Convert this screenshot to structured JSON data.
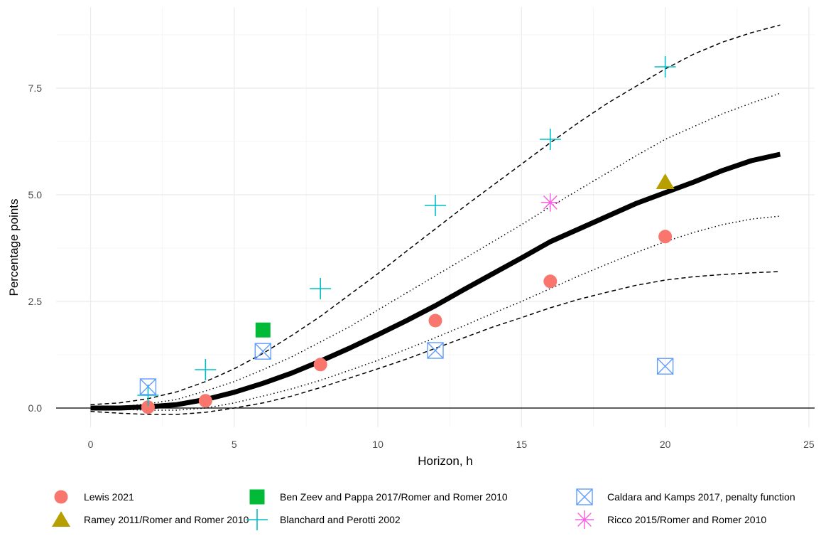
{
  "chart_data": {
    "type": "line",
    "xlabel": "Horizon, h",
    "ylabel": "Percentage points",
    "xlim": [
      -1.2,
      25.2
    ],
    "ylim": [
      -0.45,
      9.4
    ],
    "x_ticks": [
      0,
      5,
      10,
      15,
      20,
      25
    ],
    "x_tick_labels": [
      "0",
      "5",
      "10",
      "15",
      "20",
      "25"
    ],
    "y_ticks": [
      0,
      2.5,
      5,
      7.5
    ],
    "y_tick_labels": [
      "0.0",
      "2.5",
      "5.0",
      "7.5"
    ],
    "grid": true,
    "legend_position": "bottom",
    "lines": {
      "estimate": {
        "x": [
          0,
          1,
          2,
          3,
          4,
          5,
          6,
          7,
          8,
          9,
          10,
          11,
          12,
          13,
          14,
          15,
          16,
          17,
          18,
          19,
          20,
          21,
          22,
          23,
          24
        ],
        "y": [
          0.0,
          0.0,
          0.03,
          0.08,
          0.2,
          0.37,
          0.58,
          0.82,
          1.1,
          1.4,
          1.72,
          2.05,
          2.4,
          2.78,
          3.15,
          3.52,
          3.9,
          4.2,
          4.5,
          4.8,
          5.05,
          5.3,
          5.57,
          5.8,
          5.95
        ]
      },
      "band_inner_upper": {
        "x": [
          0,
          1,
          2,
          3,
          4,
          5,
          6,
          7,
          8,
          9,
          10,
          11,
          12,
          13,
          14,
          15,
          16,
          17,
          18,
          19,
          20,
          21,
          22,
          23,
          24
        ],
        "y": [
          0.0,
          0.03,
          0.1,
          0.2,
          0.4,
          0.62,
          0.9,
          1.2,
          1.55,
          1.9,
          2.3,
          2.7,
          3.1,
          3.5,
          3.9,
          4.3,
          4.72,
          5.12,
          5.52,
          5.92,
          6.3,
          6.6,
          6.9,
          7.15,
          7.38
        ]
      },
      "band_inner_lower": {
        "x": [
          0,
          1,
          2,
          3,
          4,
          5,
          6,
          7,
          8,
          9,
          10,
          11,
          12,
          13,
          14,
          15,
          16,
          17,
          18,
          19,
          20,
          21,
          22,
          23,
          24
        ],
        "y": [
          0.0,
          -0.03,
          -0.05,
          -0.05,
          0.0,
          0.12,
          0.28,
          0.45,
          0.65,
          0.88,
          1.12,
          1.38,
          1.65,
          1.93,
          2.22,
          2.5,
          2.8,
          3.1,
          3.38,
          3.65,
          3.9,
          4.12,
          4.3,
          4.43,
          4.5
        ]
      },
      "band_outer_upper": {
        "x": [
          0,
          1,
          2,
          3,
          4,
          5,
          6,
          7,
          8,
          9,
          10,
          11,
          12,
          13,
          14,
          15,
          16,
          17,
          18,
          19,
          20,
          21,
          22,
          23,
          24
        ],
        "y": [
          0.08,
          0.12,
          0.22,
          0.38,
          0.62,
          0.92,
          1.28,
          1.7,
          2.15,
          2.65,
          3.15,
          3.68,
          4.2,
          4.72,
          5.22,
          5.72,
          6.22,
          6.7,
          7.15,
          7.55,
          7.95,
          8.3,
          8.58,
          8.8,
          8.98
        ]
      },
      "band_outer_lower": {
        "x": [
          0,
          1,
          2,
          3,
          4,
          5,
          6,
          7,
          8,
          9,
          10,
          11,
          12,
          13,
          14,
          15,
          16,
          17,
          18,
          19,
          20,
          21,
          22,
          23,
          24
        ],
        "y": [
          -0.08,
          -0.12,
          -0.15,
          -0.15,
          -0.1,
          0.0,
          0.12,
          0.28,
          0.48,
          0.7,
          0.92,
          1.15,
          1.4,
          1.65,
          1.9,
          2.12,
          2.35,
          2.55,
          2.72,
          2.88,
          3.0,
          3.08,
          3.13,
          3.17,
          3.2
        ]
      }
    },
    "series": [
      {
        "name": "Lewis 2021",
        "marker": "circle",
        "color": "#F8766D",
        "points": [
          [
            2,
            0.02
          ],
          [
            4,
            0.17
          ],
          [
            8,
            1.02
          ],
          [
            12,
            2.05
          ],
          [
            16,
            2.97
          ],
          [
            20,
            4.02
          ]
        ]
      },
      {
        "name": "Ramey 2011/Romer and Romer 2010",
        "marker": "triangle",
        "color": "#B79F00",
        "points": [
          [
            20,
            5.3
          ]
        ]
      },
      {
        "name": "Ben Zeev and Pappa 2017/Romer and Romer 2010",
        "marker": "square",
        "color": "#00BA38",
        "points": [
          [
            6,
            1.83
          ]
        ]
      },
      {
        "name": "Blanchard and Perotti 2002",
        "marker": "plus",
        "color": "#00BFC4",
        "points": [
          [
            2,
            0.3
          ],
          [
            4,
            0.9
          ],
          [
            8,
            2.8
          ],
          [
            12,
            4.75
          ],
          [
            16,
            6.3
          ],
          [
            20,
            8.0
          ]
        ]
      },
      {
        "name": "Caldara and Kamps 2017, penalty function",
        "marker": "boxx",
        "color": "#619CFF",
        "points": [
          [
            2,
            0.5
          ],
          [
            6,
            1.33
          ],
          [
            12,
            1.35
          ],
          [
            20,
            0.98
          ]
        ]
      },
      {
        "name": "Ricco 2015/Romer and Romer 2010",
        "marker": "asterisk",
        "color": "#F564E3",
        "points": [
          [
            16,
            4.82
          ]
        ]
      }
    ]
  }
}
